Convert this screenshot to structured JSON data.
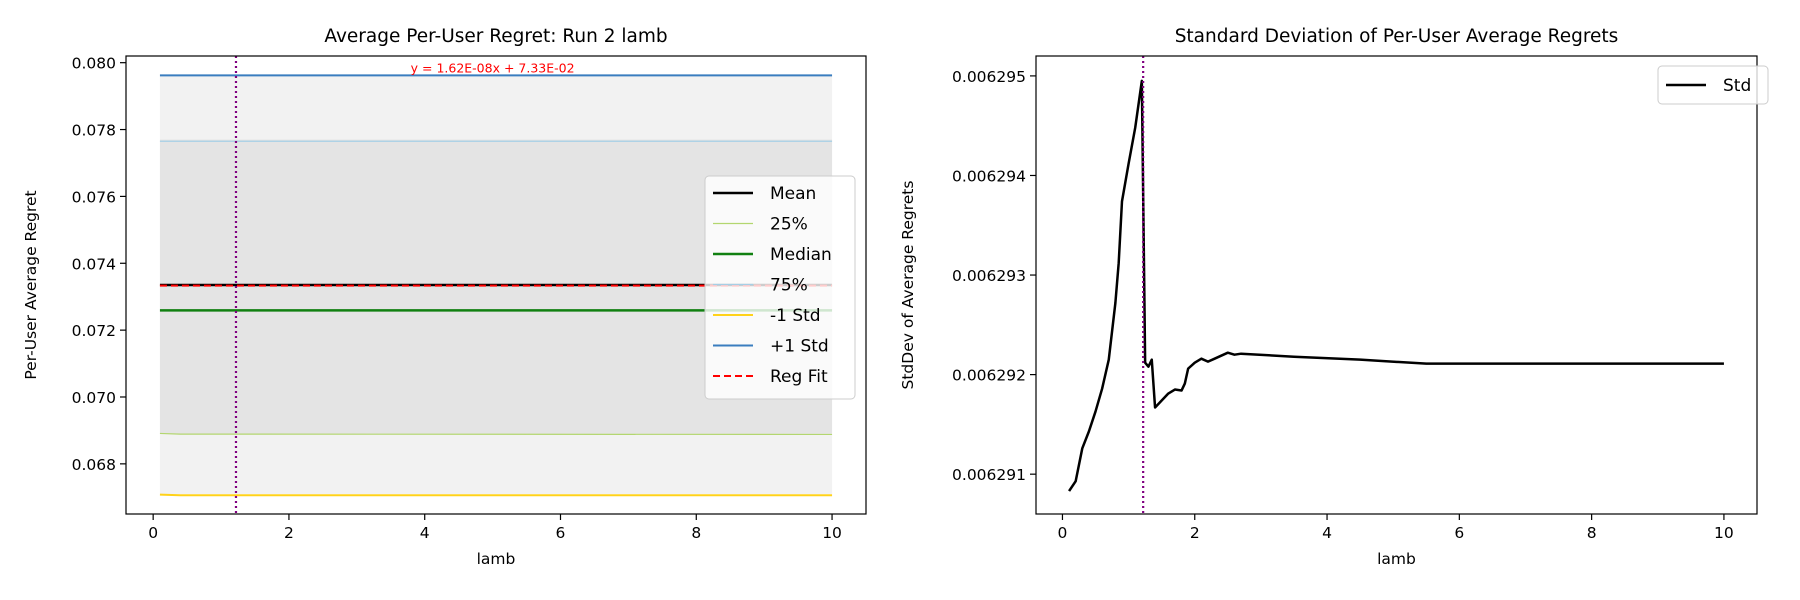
{
  "chart_data": [
    {
      "type": "line",
      "title": "Average Per-User Regret: Run 2 lamb",
      "xlabel": "lamb",
      "ylabel": "Per-User Average Regret",
      "xlim": [
        -0.4,
        10.5
      ],
      "ylim": [
        0.0665,
        0.0802
      ],
      "x_ticks": [
        0,
        2,
        4,
        6,
        8,
        10
      ],
      "x_tick_labels": [
        "0",
        "2",
        "4",
        "6",
        "8",
        "10"
      ],
      "y_ticks": [
        0.068,
        0.07,
        0.072,
        0.074,
        0.076,
        0.078,
        0.08
      ],
      "y_tick_labels": [
        "0.068",
        "0.070",
        "0.072",
        "0.074",
        "0.076",
        "0.078",
        "0.080"
      ],
      "vline_x": 1.22,
      "vline_color": "#800080",
      "annotation": "y = 1.62E-08x + 7.33E-02",
      "annotation_x": 5.0,
      "annotation_y": 0.0798,
      "annotation_color": "#ff0000",
      "legend_position": "center-right",
      "outer_band": {
        "low": 0.0671,
        "high": 0.0796,
        "color": "#f2f2f2"
      },
      "inner_band": {
        "low": 0.0689,
        "high": 0.0777,
        "color": "#e4e4e4"
      },
      "x_range": [
        0.1,
        10.0
      ],
      "series": [
        {
          "name": "Mean",
          "color": "#000000",
          "style": "solid",
          "width": 2.5,
          "values": [
            [
              0.1,
              0.07335
            ],
            [
              10.0,
              0.07335
            ]
          ]
        },
        {
          "name": "25%",
          "color": "#b3d66f",
          "style": "solid",
          "width": 1.2,
          "values": [
            [
              0.1,
              0.06891
            ],
            [
              0.4,
              0.06889
            ],
            [
              10.0,
              0.06888
            ]
          ]
        },
        {
          "name": "Median",
          "color": "#118011",
          "style": "solid",
          "width": 2.5,
          "values": [
            [
              0.1,
              0.07259
            ],
            [
              10.0,
              0.07259
            ]
          ]
        },
        {
          "name": "75%",
          "color": "#a6cfe6",
          "style": "solid",
          "width": 1.2,
          "values": [
            [
              0.1,
              0.07765
            ],
            [
              10.0,
              0.07765
            ]
          ]
        },
        {
          "name": "-1 Std",
          "color": "#ffd21a",
          "style": "solid",
          "width": 2,
          "values": [
            [
              0.1,
              0.06708
            ],
            [
              0.4,
              0.06706
            ],
            [
              10.0,
              0.06706
            ]
          ]
        },
        {
          "name": "+1 Std",
          "color": "#3a7dbf",
          "style": "solid",
          "width": 2,
          "values": [
            [
              0.1,
              0.07962
            ],
            [
              10.0,
              0.07962
            ]
          ]
        },
        {
          "name": "Reg Fit",
          "color": "#ff0000",
          "style": "dashed",
          "width": 2,
          "values": [
            [
              0.1,
              0.07333
            ],
            [
              10.0,
              0.07333
            ]
          ]
        }
      ]
    },
    {
      "type": "line",
      "title": "Standard Deviation of Per-User Average Regrets",
      "xlabel": "lamb",
      "ylabel": "StdDev of Average Regrets",
      "xlim": [
        -0.4,
        10.5
      ],
      "ylim": [
        0.0062906,
        0.0062952
      ],
      "x_ticks": [
        0,
        2,
        4,
        6,
        8,
        10
      ],
      "x_tick_labels": [
        "0",
        "2",
        "4",
        "6",
        "8",
        "10"
      ],
      "y_ticks": [
        0.006291,
        0.006292,
        0.006293,
        0.006294,
        0.006295
      ],
      "y_tick_labels": [
        "0.006291",
        "0.006292",
        "0.006293",
        "0.006294",
        "0.006295"
      ],
      "vline_x": 1.22,
      "vline_color": "#800080",
      "legend_position": "top-right",
      "series": [
        {
          "name": "Std",
          "color": "#000000",
          "style": "solid",
          "width": 2.5,
          "values": [
            [
              0.1,
              0.00629083
            ],
            [
              0.2,
              0.00629093
            ],
            [
              0.3,
              0.00629126
            ],
            [
              0.4,
              0.00629143
            ],
            [
              0.5,
              0.00629163
            ],
            [
              0.6,
              0.00629186
            ],
            [
              0.7,
              0.00629215
            ],
            [
              0.8,
              0.00629272
            ],
            [
              0.85,
              0.00629312
            ],
            [
              0.9,
              0.00629374
            ],
            [
              1.0,
              0.00629412
            ],
            [
              1.1,
              0.00629448
            ],
            [
              1.2,
              0.00629495
            ],
            [
              1.25,
              0.00629212
            ],
            [
              1.3,
              0.00629208
            ],
            [
              1.35,
              0.00629215
            ],
            [
              1.4,
              0.00629167
            ],
            [
              1.5,
              0.00629174
            ],
            [
              1.6,
              0.00629181
            ],
            [
              1.7,
              0.00629185
            ],
            [
              1.8,
              0.00629184
            ],
            [
              1.85,
              0.00629191
            ],
            [
              1.9,
              0.00629206
            ],
            [
              2.0,
              0.00629212
            ],
            [
              2.1,
              0.00629216
            ],
            [
              2.2,
              0.00629213
            ],
            [
              2.3,
              0.00629216
            ],
            [
              2.5,
              0.00629222
            ],
            [
              2.6,
              0.0062922
            ],
            [
              2.7,
              0.00629221
            ],
            [
              3.5,
              0.00629218
            ],
            [
              4.5,
              0.00629215
            ],
            [
              5.5,
              0.00629211
            ],
            [
              7.0,
              0.00629211
            ],
            [
              10.0,
              0.00629211
            ]
          ]
        }
      ]
    }
  ]
}
